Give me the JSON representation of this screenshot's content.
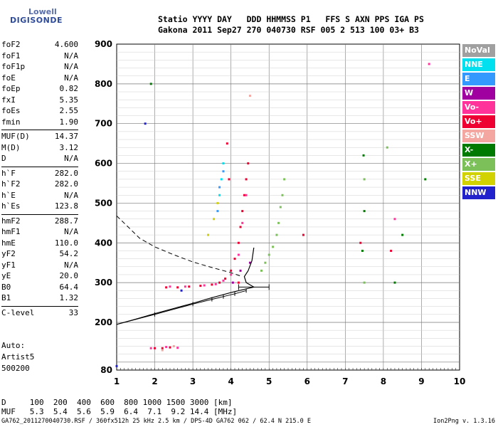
{
  "logo": {
    "line1": "Lowell",
    "line2": "DIGISONDE"
  },
  "header": {
    "line1": "Statio YYYY DAY   DDD HHMMSS P1   FFS S AXN PPS IGA PS",
    "line2": "Gakona 2011 Sep27 270 040730 RSF 005 2 513 100 03+ B3"
  },
  "params": [
    {
      "group": [
        {
          "k": "foF2",
          "v": "4.600"
        },
        {
          "k": "foF1",
          "v": "N/A"
        },
        {
          "k": "foF1p",
          "v": "N/A"
        },
        {
          "k": "foE",
          "v": "N/A"
        },
        {
          "k": "foEp",
          "v": "0.82"
        },
        {
          "k": "fxI",
          "v": "5.35"
        },
        {
          "k": "foEs",
          "v": "2.55"
        },
        {
          "k": "fmin",
          "v": "1.90"
        }
      ]
    },
    {
      "group": [
        {
          "k": "MUF(D)",
          "v": "14.37"
        },
        {
          "k": "M(D)",
          "v": "3.12"
        },
        {
          "k": "D",
          "v": "N/A"
        }
      ]
    },
    {
      "group": [
        {
          "k": "h`F",
          "v": "282.0"
        },
        {
          "k": "h`F2",
          "v": "282.0"
        },
        {
          "k": "h`E",
          "v": "N/A"
        },
        {
          "k": "h`Es",
          "v": "123.8"
        }
      ]
    },
    {
      "group": [
        {
          "k": "hmF2",
          "v": "288.7"
        },
        {
          "k": "hmF1",
          "v": "N/A"
        },
        {
          "k": "hmE",
          "v": "110.0"
        },
        {
          "k": "yF2",
          "v": "54.2"
        },
        {
          "k": "yF1",
          "v": "N/A"
        },
        {
          "k": "yE",
          "v": "20.0"
        },
        {
          "k": "B0",
          "v": "64.4"
        },
        {
          "k": "B1",
          "v": "1.32"
        }
      ]
    },
    {
      "group": [
        {
          "k": "C-level",
          "v": "33"
        }
      ]
    }
  ],
  "auto": {
    "line1": "Auto:",
    "line2": "Artist5",
    "line3": "500200"
  },
  "legend": [
    {
      "label": "NoVal",
      "color": "#a0a0a0"
    },
    {
      "label": "NNE",
      "color": "#00e0ee"
    },
    {
      "label": "E",
      "color": "#3399ff"
    },
    {
      "label": "W",
      "color": "#a000a0"
    },
    {
      "label": "Vo-",
      "color": "#ff3399"
    },
    {
      "label": "Vo+",
      "color": "#ee0033"
    },
    {
      "label": "SSW",
      "color": "#f4a6a0"
    },
    {
      "label": "X-",
      "color": "#007a00"
    },
    {
      "label": "X+",
      "color": "#7cc05a"
    },
    {
      "label": "SSE",
      "color": "#d2d200"
    },
    {
      "label": "NNW",
      "color": "#2222cc"
    }
  ],
  "dtable": {
    "row1": "D     100  200  400  600  800 1000 1500 3000 [km]",
    "row2": "MUF   5.3  5.4  5.6  5.9  6.4  7.1  9.2 14.4 [MHz]"
  },
  "footer": "GA762_2011270040730.RSF / 360fx512h 25 kHz 2.5 km / DPS-4D GA762 062 / 62.4 N 215.0 E",
  "version": "Ion2Png v. 1.3.16",
  "chart_data": {
    "type": "scatter",
    "title": "",
    "xlabel": "",
    "ylabel": "",
    "xlim": [
      1,
      10
    ],
    "ylim": [
      80,
      900
    ],
    "x_ticks": [
      "1",
      "2",
      "3",
      "4",
      "5",
      "6",
      "7",
      "8",
      "9",
      "10"
    ],
    "y_ticks": [
      "80",
      "200",
      "300",
      "400",
      "500",
      "600",
      "700",
      "800",
      "900"
    ],
    "grid": true,
    "traces": [
      {
        "name": "Vo+",
        "color": "#ee0033",
        "points": [
          [
            2.3,
            288
          ],
          [
            2.6,
            288
          ],
          [
            2.9,
            290
          ],
          [
            3.2,
            292
          ],
          [
            3.5,
            295
          ],
          [
            3.7,
            300
          ],
          [
            3.85,
            310
          ],
          [
            4.0,
            330
          ],
          [
            4.1,
            360
          ],
          [
            4.2,
            400
          ],
          [
            4.25,
            440
          ],
          [
            4.3,
            480
          ],
          [
            4.35,
            520
          ],
          [
            4.4,
            560
          ],
          [
            4.45,
            600
          ],
          [
            3.9,
            650
          ],
          [
            3.95,
            560
          ],
          [
            2.0,
            135
          ],
          [
            2.2,
            135
          ],
          [
            2.4,
            137
          ],
          [
            5.9,
            420
          ],
          [
            4.2,
            300
          ],
          [
            7.4,
            400
          ],
          [
            8.2,
            380
          ]
        ]
      },
      {
        "name": "Vo-",
        "color": "#ff3399",
        "points": [
          [
            2.4,
            290
          ],
          [
            2.8,
            290
          ],
          [
            3.3,
            293
          ],
          [
            3.6,
            296
          ],
          [
            3.8,
            305
          ],
          [
            4.0,
            320
          ],
          [
            4.2,
            370
          ],
          [
            4.3,
            450
          ],
          [
            4.4,
            520
          ],
          [
            1.9,
            135
          ],
          [
            2.3,
            138
          ],
          [
            2.6,
            136
          ],
          [
            8.3,
            460
          ],
          [
            9.2,
            850
          ]
        ]
      },
      {
        "name": "X+",
        "color": "#7cc05a",
        "points": [
          [
            4.8,
            330
          ],
          [
            4.9,
            350
          ],
          [
            5.0,
            370
          ],
          [
            5.1,
            390
          ],
          [
            5.2,
            420
          ],
          [
            5.25,
            450
          ],
          [
            5.3,
            490
          ],
          [
            5.35,
            520
          ],
          [
            5.4,
            560
          ],
          [
            7.5,
            300
          ],
          [
            7.5,
            560
          ],
          [
            8.1,
            640
          ]
        ]
      },
      {
        "name": "X-",
        "color": "#007a00",
        "points": [
          [
            7.45,
            380
          ],
          [
            7.5,
            480
          ],
          [
            7.48,
            620
          ],
          [
            8.3,
            300
          ],
          [
            8.5,
            420
          ],
          [
            9.1,
            560
          ],
          [
            1.9,
            800
          ]
        ]
      },
      {
        "name": "NNE",
        "color": "#00e0ee",
        "points": [
          [
            3.7,
            520
          ],
          [
            3.75,
            560
          ],
          [
            3.8,
            600
          ]
        ]
      },
      {
        "name": "E",
        "color": "#3399ff",
        "points": [
          [
            3.65,
            480
          ],
          [
            3.7,
            540
          ],
          [
            3.8,
            580
          ]
        ]
      },
      {
        "name": "SSE",
        "color": "#d2d200",
        "points": [
          [
            3.4,
            420
          ],
          [
            3.55,
            460
          ],
          [
            3.65,
            500
          ]
        ]
      },
      {
        "name": "W",
        "color": "#a000a0",
        "points": [
          [
            4.05,
            300
          ],
          [
            4.25,
            330
          ],
          [
            4.5,
            350
          ]
        ]
      },
      {
        "name": "NNW",
        "color": "#2222cc",
        "points": [
          [
            1.75,
            700
          ],
          [
            2.7,
            280
          ],
          [
            1.0,
            90
          ]
        ]
      },
      {
        "name": "SSW",
        "color": "#f4a6a0",
        "points": [
          [
            2.5,
            140
          ],
          [
            2.2,
            130
          ],
          [
            4.5,
            770
          ]
        ]
      }
    ],
    "profile_solid": [
      [
        1.0,
        195
      ],
      [
        1.5,
        208
      ],
      [
        2.0,
        222
      ],
      [
        2.5,
        235
      ],
      [
        3.0,
        248
      ],
      [
        3.5,
        262
      ],
      [
        4.0,
        275
      ],
      [
        4.3,
        282
      ],
      [
        4.6,
        288.7
      ],
      [
        4.4,
        300
      ],
      [
        4.35,
        315
      ],
      [
        4.45,
        330
      ],
      [
        4.55,
        355
      ],
      [
        4.6,
        388
      ]
    ],
    "profile_dashed": [
      [
        1.0,
        468
      ],
      [
        1.3,
        440
      ],
      [
        1.6,
        412
      ],
      [
        2.0,
        390
      ],
      [
        2.5,
        370
      ],
      [
        3.0,
        352
      ],
      [
        3.5,
        338
      ],
      [
        4.0,
        325
      ],
      [
        4.3,
        315
      ]
    ],
    "scaled_trace": [
      [
        1.0,
        195
      ],
      [
        2.0,
        220
      ],
      [
        3.0,
        246
      ],
      [
        3.5,
        258
      ],
      [
        3.8,
        265
      ],
      [
        4.1,
        272
      ],
      [
        4.4,
        280
      ]
    ],
    "error_bar": {
      "x_from": 4.2,
      "x_to": 5.0,
      "y": 288.7
    }
  }
}
